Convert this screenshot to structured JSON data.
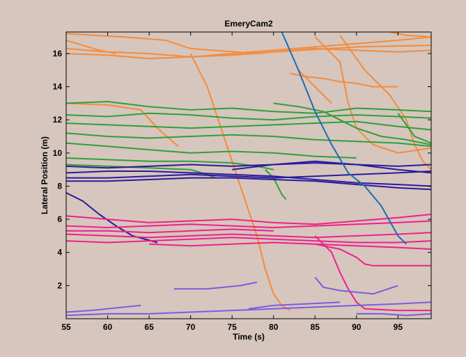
{
  "chart_data": {
    "type": "line",
    "title": "EmeryCam2",
    "xlabel": "Time (s)",
    "ylabel": "Lateral Position (m)",
    "xlim": [
      55,
      99
    ],
    "ylim": [
      0,
      17.3
    ],
    "xticks": [
      55,
      60,
      65,
      70,
      75,
      80,
      85,
      90,
      95
    ],
    "yticks": [
      2,
      4,
      6,
      8,
      10,
      12,
      14,
      16
    ],
    "grid": false,
    "legend": "none",
    "colors": {
      "orange": "#f58b3c",
      "green": "#2ea03a",
      "navy": "#2a1a9e",
      "pink": "#f0208a",
      "purple": "#7b5ce0",
      "blue": "#1a6db5",
      "plot_bg": "#d6c6bd",
      "axes": "#000000"
    },
    "series": [
      {
        "group": "orange",
        "x": [
          55,
          60,
          65,
          70,
          75,
          80,
          85,
          90,
          95,
          99
        ],
        "y": [
          16.3,
          16.1,
          16.0,
          15.8,
          15.9,
          16.1,
          16.3,
          16.2,
          16.1,
          16.2
        ]
      },
      {
        "group": "orange",
        "x": [
          55,
          60,
          65,
          70,
          75,
          80,
          85,
          90,
          95,
          99
        ],
        "y": [
          16.0,
          15.9,
          15.7,
          15.8,
          16.0,
          16.2,
          16.4,
          16.6,
          16.8,
          17.0
        ]
      },
      {
        "group": "orange",
        "x": [
          55,
          62,
          67,
          70,
          78,
          80,
          90,
          99
        ],
        "y": [
          17.2,
          17.0,
          16.8,
          16.3,
          16.0,
          16.1,
          16.4,
          16.5
        ]
      },
      {
        "group": "orange",
        "x": [
          55,
          57,
          59,
          61
        ],
        "y": [
          16.8,
          16.5,
          16.2,
          16.0
        ]
      },
      {
        "group": "orange",
        "x": [
          55,
          60,
          64,
          66,
          68.5
        ],
        "y": [
          13.0,
          12.9,
          12.6,
          11.5,
          10.4
        ]
      },
      {
        "group": "orange",
        "x": [
          70,
          72,
          74,
          76,
          78,
          79,
          80,
          81,
          82
        ],
        "y": [
          16.0,
          14.0,
          11.0,
          8.0,
          5.0,
          3.0,
          1.5,
          0.8,
          0.5
        ]
      },
      {
        "group": "orange",
        "x": [
          82,
          84,
          86,
          88,
          90,
          92,
          95
        ],
        "y": [
          14.8,
          14.6,
          14.5,
          14.3,
          14.2,
          14.0,
          14.0
        ]
      },
      {
        "group": "orange",
        "x": [
          83,
          84,
          85,
          86,
          87
        ],
        "y": [
          15.0,
          14.5,
          14.0,
          13.5,
          13.0
        ]
      },
      {
        "group": "orange",
        "x": [
          85,
          88,
          89,
          90,
          92,
          95,
          99
        ],
        "y": [
          17.0,
          15.5,
          13.0,
          11.5,
          10.5,
          10.0,
          10.3
        ]
      },
      {
        "group": "orange",
        "x": [
          88,
          91,
          94,
          96,
          97,
          98,
          99
        ],
        "y": [
          17.1,
          15.0,
          13.5,
          12.0,
          10.5,
          9.5,
          9.0
        ]
      },
      {
        "group": "orange",
        "x": [
          94,
          96,
          99
        ],
        "y": [
          17.3,
          17.1,
          17.0
        ]
      },
      {
        "group": "green",
        "x": [
          55,
          60,
          65,
          70,
          75,
          80,
          85,
          90,
          95,
          99
        ],
        "y": [
          13.0,
          13.1,
          12.8,
          12.6,
          12.7,
          12.5,
          12.4,
          12.7,
          12.6,
          12.5
        ]
      },
      {
        "group": "green",
        "x": [
          55,
          60,
          65,
          70,
          75,
          80,
          85,
          90,
          95,
          99
        ],
        "y": [
          12.3,
          12.2,
          12.4,
          12.3,
          12.1,
          12.0,
          12.2,
          12.3,
          12.2,
          12.1
        ]
      },
      {
        "group": "green",
        "x": [
          55,
          60,
          65,
          70,
          75,
          80,
          85,
          90,
          95,
          99
        ],
        "y": [
          11.8,
          11.7,
          11.6,
          11.5,
          11.6,
          11.7,
          11.8,
          11.9,
          11.6,
          11.4
        ]
      },
      {
        "group": "green",
        "x": [
          55,
          60,
          65,
          70,
          75,
          80,
          85,
          90,
          95,
          99
        ],
        "y": [
          11.2,
          11.0,
          10.9,
          11.0,
          11.1,
          11.0,
          10.8,
          10.7,
          10.6,
          10.4
        ]
      },
      {
        "group": "green",
        "x": [
          55,
          60,
          65,
          70,
          75,
          80,
          85,
          90
        ],
        "y": [
          10.6,
          10.4,
          10.2,
          10.0,
          10.1,
          10.0,
          9.8,
          9.7
        ]
      },
      {
        "group": "green",
        "x": [
          55,
          60,
          65,
          70,
          75,
          78,
          80
        ],
        "y": [
          9.7,
          9.6,
          9.5,
          9.5,
          9.4,
          9.2,
          9.0
        ]
      },
      {
        "group": "green",
        "x": [
          55,
          60,
          65,
          70,
          72,
          73
        ],
        "y": [
          9.3,
          9.2,
          9.1,
          9.0,
          8.7,
          8.5
        ]
      },
      {
        "group": "green",
        "x": [
          80,
          83,
          86,
          88,
          90,
          93,
          96,
          99
        ],
        "y": [
          13.0,
          12.8,
          12.5,
          12.0,
          11.5,
          11.0,
          10.8,
          10.5
        ]
      },
      {
        "group": "green",
        "x": [
          79,
          80,
          81,
          81.5
        ],
        "y": [
          9.0,
          8.5,
          7.5,
          7.2
        ]
      },
      {
        "group": "green",
        "x": [
          95,
          97,
          99
        ],
        "y": [
          12.4,
          11.0,
          10.6
        ]
      },
      {
        "group": "navy",
        "x": [
          55,
          60,
          65,
          70,
          75,
          80,
          85,
          90,
          95,
          99
        ],
        "y": [
          8.5,
          8.5,
          8.6,
          8.7,
          8.6,
          8.5,
          8.6,
          8.7,
          8.8,
          8.9
        ]
      },
      {
        "group": "navy",
        "x": [
          55,
          60,
          65,
          70,
          75,
          80,
          85,
          90,
          95,
          99
        ],
        "y": [
          8.8,
          8.9,
          8.9,
          8.8,
          8.7,
          8.6,
          8.4,
          8.2,
          8.1,
          8.0
        ]
      },
      {
        "group": "navy",
        "x": [
          55,
          60,
          65,
          70,
          75,
          80,
          85,
          90,
          95,
          99
        ],
        "y": [
          8.3,
          8.3,
          8.4,
          8.5,
          8.5,
          8.4,
          8.3,
          8.1,
          7.9,
          7.8
        ]
      },
      {
        "group": "navy",
        "x": [
          55,
          60,
          65,
          70,
          75,
          80,
          85,
          90,
          95,
          99
        ],
        "y": [
          9.2,
          9.1,
          9.2,
          9.3,
          9.2,
          9.3,
          9.4,
          9.3,
          9.2,
          9.3
        ]
      },
      {
        "group": "navy",
        "x": [
          75,
          80,
          85,
          90,
          95,
          99
        ],
        "y": [
          9.0,
          9.3,
          9.5,
          9.3,
          9.0,
          8.8
        ]
      },
      {
        "group": "navy",
        "x": [
          55,
          57,
          59,
          61,
          63,
          66
        ],
        "y": [
          7.6,
          7.1,
          6.3,
          5.6,
          5.0,
          4.6
        ]
      },
      {
        "group": "pink",
        "x": [
          55,
          60,
          65,
          70,
          75,
          80,
          85,
          90,
          95,
          99
        ],
        "y": [
          5.1,
          5.0,
          4.9,
          5.0,
          5.1,
          5.0,
          4.9,
          5.0,
          5.1,
          5.2
        ]
      },
      {
        "group": "pink",
        "x": [
          55,
          60,
          65,
          70,
          75,
          80,
          85,
          90,
          95,
          99
        ],
        "y": [
          5.6,
          5.5,
          5.6,
          5.7,
          5.6,
          5.5,
          5.6,
          5.7,
          5.8,
          5.9
        ]
      },
      {
        "group": "pink",
        "x": [
          55,
          60,
          65,
          70,
          75,
          80,
          85,
          90,
          95,
          99
        ],
        "y": [
          4.7,
          4.6,
          4.7,
          4.8,
          4.9,
          4.8,
          4.7,
          4.6,
          4.6,
          4.7
        ]
      },
      {
        "group": "pink",
        "x": [
          55,
          60,
          65,
          70,
          75,
          80,
          85,
          90,
          95,
          99
        ],
        "y": [
          6.2,
          6.0,
          5.8,
          5.9,
          6.0,
          5.8,
          5.7,
          5.9,
          6.1,
          6.3
        ]
      },
      {
        "group": "pink",
        "x": [
          55,
          60,
          65,
          70,
          75,
          80
        ],
        "y": [
          5.3,
          5.3,
          5.2,
          5.3,
          5.4,
          5.3
        ]
      },
      {
        "group": "pink",
        "x": [
          65,
          70,
          75,
          80,
          85,
          90,
          95,
          99
        ],
        "y": [
          4.5,
          4.4,
          4.5,
          4.6,
          4.5,
          4.4,
          4.3,
          4.2
        ]
      },
      {
        "group": "pink",
        "x": [
          85,
          88,
          90,
          91,
          92,
          93,
          95,
          99
        ],
        "y": [
          4.5,
          4.2,
          3.7,
          3.3,
          3.2,
          3.2,
          3.2,
          3.2
        ]
      },
      {
        "group": "pink",
        "x": [
          85,
          87,
          88,
          89,
          90,
          91,
          95,
          99
        ],
        "y": [
          5.0,
          4.0,
          2.8,
          1.8,
          1.0,
          0.6,
          0.5,
          0.5
        ]
      },
      {
        "group": "purple",
        "x": [
          55,
          58,
          62,
          64
        ],
        "y": [
          0.4,
          0.5,
          0.7,
          0.8
        ]
      },
      {
        "group": "purple",
        "x": [
          55,
          60,
          65,
          70,
          75,
          80,
          85,
          90,
          95,
          99
        ],
        "y": [
          0.2,
          0.3,
          0.3,
          0.4,
          0.5,
          0.6,
          0.7,
          0.8,
          0.9,
          1.0
        ]
      },
      {
        "group": "purple",
        "x": [
          68,
          72,
          76,
          78
        ],
        "y": [
          1.8,
          1.8,
          2.0,
          2.2
        ]
      },
      {
        "group": "purple",
        "x": [
          77,
          80,
          84,
          88
        ],
        "y": [
          0.6,
          0.8,
          0.9,
          1.0
        ]
      },
      {
        "group": "purple",
        "x": [
          85,
          86,
          88,
          90,
          92,
          95
        ],
        "y": [
          2.5,
          1.9,
          1.7,
          1.6,
          1.5,
          2.0
        ]
      },
      {
        "group": "purple",
        "x": [
          90,
          93,
          96,
          99
        ],
        "y": [
          0.3,
          0.3,
          0.2,
          0.3
        ]
      },
      {
        "group": "blue",
        "x": [
          81,
          83,
          85,
          87,
          89,
          91,
          93,
          95,
          96
        ],
        "y": [
          17.3,
          15.0,
          12.5,
          10.5,
          8.8,
          8.0,
          6.8,
          5.0,
          4.5
        ]
      }
    ]
  }
}
